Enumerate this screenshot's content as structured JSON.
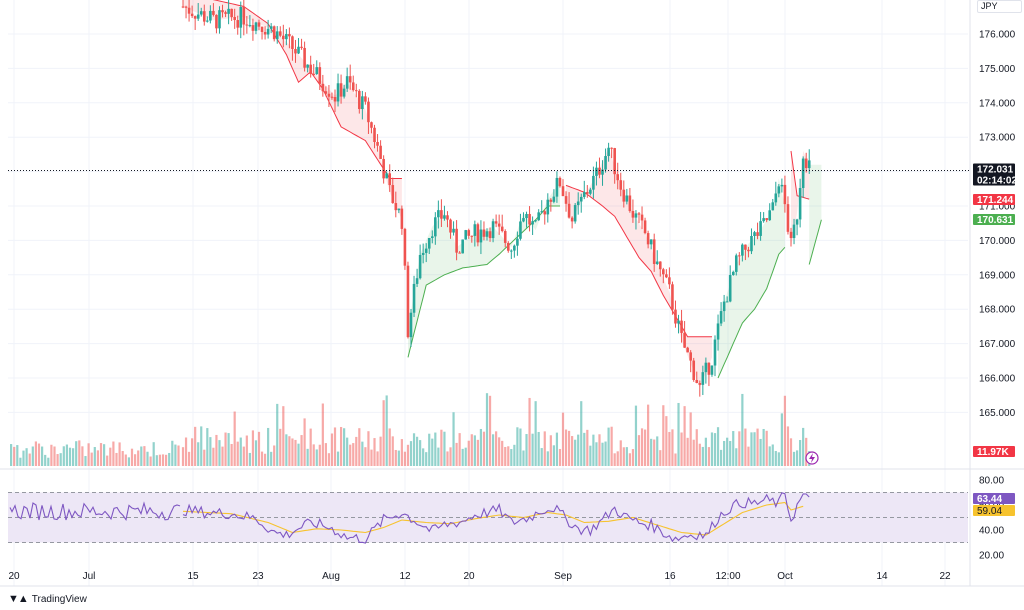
{
  "currency": "JPY",
  "branding": "TradingView",
  "colors": {
    "up": "#26a69a",
    "down": "#ef5350",
    "st_up": "#4caf50",
    "st_down": "#f23645",
    "rsi": "#7e57c2",
    "rsi_ma": "#f7c32e",
    "rsi_band": "#ede7f6"
  },
  "chart_data": {
    "type": "line",
    "price_axis": {
      "ticks": [
        "176.000",
        "175.000",
        "174.000",
        "173.000",
        "172.000",
        "171.000",
        "170.000",
        "169.000",
        "168.000",
        "167.000",
        "166.000",
        "165.000"
      ]
    },
    "time_axis": {
      "ticks": [
        "20",
        "Jul",
        "15",
        "23",
        "Aug",
        "12",
        "20",
        "Sep",
        "16",
        "12:00",
        "Oct",
        "14",
        "22"
      ]
    },
    "last_price": {
      "value": "172.031",
      "countdown": "02:14:02"
    },
    "supertrend": {
      "down_value": "171.244",
      "up_value": "170.631"
    },
    "volume": {
      "last": "11.97K"
    },
    "rsi": {
      "axis_ticks": [
        "80.00",
        "60.00",
        "40.00",
        "20.00"
      ],
      "value": "63.44",
      "ma_value": "59.04",
      "upper": 70,
      "mid": 50,
      "lower": 30
    },
    "close_path": [
      [
        0,
        176.8
      ],
      [
        5,
        176.4
      ],
      [
        10,
        176.5
      ],
      [
        15,
        176.1
      ],
      [
        18,
        175.6
      ],
      [
        22,
        174.8
      ],
      [
        25,
        174.2
      ],
      [
        27,
        174.6
      ],
      [
        30,
        173.8
      ],
      [
        32,
        172.7
      ],
      [
        34,
        171.4
      ],
      [
        36,
        170.6
      ],
      [
        37,
        167.4
      ],
      [
        39,
        169.6
      ],
      [
        41,
        170.4
      ],
      [
        43,
        170.8
      ],
      [
        45,
        169.8
      ],
      [
        48,
        170.2
      ],
      [
        51,
        170.4
      ],
      [
        54,
        169.8
      ],
      [
        56,
        170.8
      ],
      [
        58,
        170.3
      ],
      [
        60,
        171.2
      ],
      [
        62,
        171.7
      ],
      [
        64,
        170.6
      ],
      [
        66,
        171.3
      ],
      [
        68,
        171.9
      ],
      [
        70,
        172.7
      ],
      [
        72,
        171.6
      ],
      [
        74,
        170.8
      ],
      [
        76,
        170.2
      ],
      [
        78,
        169.3
      ],
      [
        80,
        168.5
      ],
      [
        82,
        167.1
      ],
      [
        84,
        166.2
      ],
      [
        85,
        165.7
      ],
      [
        87,
        166.6
      ],
      [
        89,
        168.2
      ],
      [
        91,
        169.3
      ],
      [
        93,
        169.9
      ],
      [
        95,
        170.3
      ],
      [
        97,
        170.9
      ],
      [
        98,
        171.8
      ],
      [
        99,
        171.0
      ],
      [
        100,
        169.8
      ],
      [
        101,
        170.8
      ],
      [
        102,
        172.6
      ],
      [
        103,
        172.2
      ]
    ],
    "supertrend_segments": [
      {
        "dir": "down",
        "pts": [
          [
            0,
            177.2
          ],
          [
            5,
            177.0
          ],
          [
            10,
            176.8
          ],
          [
            14,
            176.3
          ],
          [
            17,
            175.4
          ],
          [
            19,
            174.6
          ],
          [
            21,
            174.9
          ],
          [
            23,
            174.4
          ],
          [
            26,
            173.3
          ],
          [
            30,
            172.9
          ],
          [
            34,
            171.8
          ],
          [
            36,
            171.8
          ]
        ]
      },
      {
        "dir": "up",
        "pts": [
          [
            37,
            166.6
          ],
          [
            40,
            168.7
          ],
          [
            43,
            169.0
          ],
          [
            46,
            169.2
          ],
          [
            50,
            169.3
          ],
          [
            52,
            169.6
          ],
          [
            55,
            170.1
          ],
          [
            58,
            170.6
          ],
          [
            60,
            171.0
          ],
          [
            62,
            171.0
          ]
        ]
      },
      {
        "dir": "down",
        "pts": [
          [
            63,
            171.6
          ],
          [
            66,
            171.4
          ],
          [
            69,
            171.0
          ],
          [
            71,
            170.7
          ],
          [
            73,
            170.1
          ],
          [
            75,
            169.5
          ],
          [
            77,
            169.1
          ],
          [
            79,
            168.4
          ],
          [
            81,
            167.8
          ],
          [
            83,
            167.2
          ],
          [
            87,
            167.2
          ]
        ]
      },
      {
        "dir": "up",
        "pts": [
          [
            88,
            166.0
          ],
          [
            90,
            166.8
          ],
          [
            92,
            167.6
          ],
          [
            94,
            168.0
          ],
          [
            96,
            168.6
          ],
          [
            98,
            169.6
          ],
          [
            99,
            169.8
          ]
        ]
      },
      {
        "dir": "down",
        "pts": [
          [
            100,
            172.6
          ],
          [
            101,
            171.3
          ],
          [
            103,
            171.2
          ]
        ]
      },
      {
        "dir": "up",
        "pts": [
          [
            103,
            169.3
          ],
          [
            105,
            170.6
          ]
        ]
      }
    ],
    "rsi_path": [
      [
        0,
        56
      ],
      [
        4,
        54
      ],
      [
        8,
        53
      ],
      [
        12,
        49
      ],
      [
        15,
        38
      ],
      [
        17,
        36
      ],
      [
        20,
        44
      ],
      [
        22,
        45
      ],
      [
        24,
        42
      ],
      [
        25,
        40
      ],
      [
        27,
        34
      ],
      [
        30,
        33
      ],
      [
        33,
        48
      ],
      [
        36,
        54
      ],
      [
        38,
        48
      ],
      [
        41,
        39
      ],
      [
        43,
        44
      ],
      [
        46,
        47
      ],
      [
        48,
        52
      ],
      [
        50,
        54
      ],
      [
        52,
        56
      ],
      [
        54,
        46
      ],
      [
        57,
        50
      ],
      [
        59,
        56
      ],
      [
        61,
        58
      ],
      [
        63,
        49
      ],
      [
        65,
        41
      ],
      [
        67,
        40
      ],
      [
        69,
        48
      ],
      [
        71,
        57
      ],
      [
        73,
        50
      ],
      [
        75,
        46
      ],
      [
        77,
        44
      ],
      [
        79,
        38
      ],
      [
        81,
        33
      ],
      [
        83,
        36
      ],
      [
        85,
        37
      ],
      [
        86,
        35
      ],
      [
        88,
        50
      ],
      [
        90,
        58
      ],
      [
        92,
        62
      ],
      [
        94,
        61
      ],
      [
        96,
        64
      ],
      [
        98,
        61
      ],
      [
        99,
        70
      ],
      [
        100,
        48
      ],
      [
        101,
        59
      ],
      [
        102,
        68
      ],
      [
        103,
        63
      ]
    ],
    "rsi_ma_path": [
      [
        0,
        55
      ],
      [
        8,
        53
      ],
      [
        14,
        46
      ],
      [
        18,
        38
      ],
      [
        22,
        41
      ],
      [
        26,
        40
      ],
      [
        30,
        38
      ],
      [
        33,
        42
      ],
      [
        36,
        48
      ],
      [
        40,
        46
      ],
      [
        44,
        45
      ],
      [
        48,
        49
      ],
      [
        52,
        52
      ],
      [
        56,
        50
      ],
      [
        60,
        54
      ],
      [
        63,
        52
      ],
      [
        66,
        46
      ],
      [
        70,
        47
      ],
      [
        74,
        50
      ],
      [
        78,
        44
      ],
      [
        82,
        38
      ],
      [
        86,
        36
      ],
      [
        88,
        42
      ],
      [
        92,
        54
      ],
      [
        96,
        60
      ],
      [
        99,
        62
      ],
      [
        100,
        56
      ],
      [
        102,
        59
      ]
    ]
  }
}
